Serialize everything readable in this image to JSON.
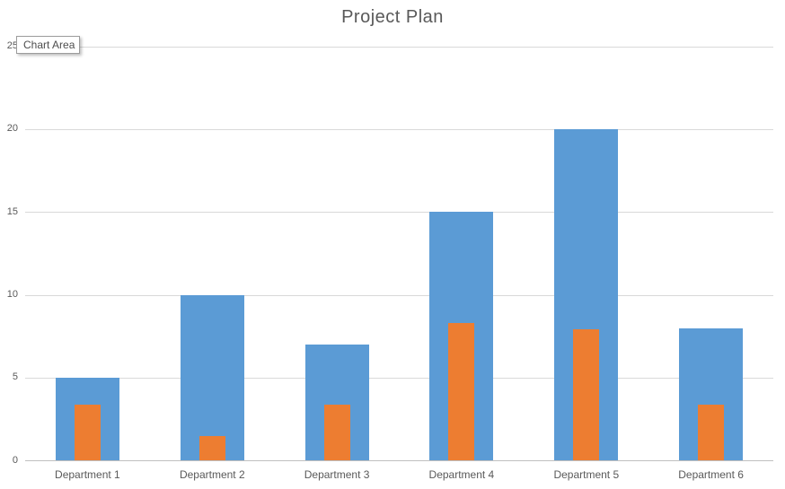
{
  "tooltip": {
    "label": "Chart Area"
  },
  "colors": {
    "blue_series": "#5B9BD5",
    "orange_series": "#ED7D31",
    "gridline": "#d9d9d9",
    "axis_line": "#bfbfbf",
    "text": "#595959"
  },
  "chart_data": {
    "type": "bar",
    "title": "Project Plan",
    "categories": [
      "Department 1",
      "Department 2",
      "Department 3",
      "Department 4",
      "Department 5",
      "Department 6"
    ],
    "series": [
      {
        "name": "blue-series",
        "color": "#5B9BD5",
        "values": [
          5,
          10,
          7,
          15,
          20,
          8
        ]
      },
      {
        "name": "orange-series",
        "color": "#ED7D31",
        "values": [
          3.4,
          1.5,
          3.4,
          8.3,
          7.9,
          3.4
        ]
      }
    ],
    "xlabel": "",
    "ylabel": "",
    "ylim": [
      0,
      25
    ],
    "yticks": [
      0,
      5,
      10,
      15,
      20,
      25
    ],
    "grid": true,
    "legend_position": "none",
    "layout_hint": "orange series drawn as narrower overlay bars centered inside blue bars"
  }
}
